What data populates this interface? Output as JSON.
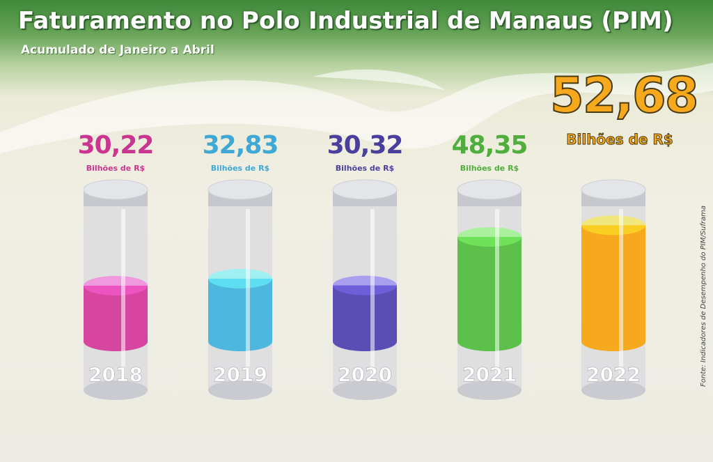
{
  "title": "Faturamento no Polo Industrial de Manaus (PIM)",
  "subtitle": "Acumulado de Janeiro a Abril",
  "source": "Fonte: Indicadores de Desempenho do PIM/Suframa",
  "chart_data": {
    "type": "bar",
    "title": "Faturamento no Polo Industrial de Manaus (PIM)",
    "subtitle": "Acumulado de Janeiro a Abril",
    "unit": "Bilhões de R$",
    "categories": [
      "2018",
      "2019",
      "2020",
      "2021",
      "2022"
    ],
    "values": [
      30.22,
      32.83,
      30.32,
      48.35,
      52.68
    ],
    "value_labels": [
      "30,22",
      "32,83",
      "30,32",
      "48,35",
      "52,68"
    ],
    "colors": [
      "#d6459f",
      "#4db7de",
      "#5a4db3",
      "#5cc04a",
      "#f7a91d"
    ],
    "label_colors": [
      "#c9358f",
      "#3fa8d4",
      "#4a3f9c",
      "#4fae3e",
      "#f7a91d"
    ]
  }
}
